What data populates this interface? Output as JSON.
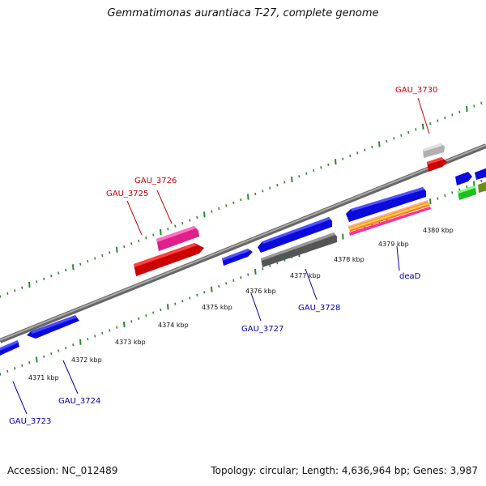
{
  "title": "Gemmatimonas aurantiaca T-27, complete genome",
  "footer": {
    "accession": "Accession: NC_012489",
    "info": "Topology: circular; Length: 4,636,964 bp; Genes: 3,987"
  },
  "colors": {
    "backbone": "#888888",
    "tick": "#2a8a2a",
    "label_upper": "#cc0000",
    "label_lower": "#0000aa"
  },
  "scale_labels": [
    "4371 kbp",
    "4372 kbp",
    "4373 kbp",
    "4374 kbp",
    "4375 kbp",
    "4376 kbp",
    "4377 kbp",
    "4378 kbp",
    "4379 kbp",
    "4380 kbp"
  ],
  "gene_labels": {
    "GAU_3723": "GAU_3723",
    "GAU_3724": "GAU_3724",
    "GAU_3725": "GAU_3725",
    "GAU_3726": "GAU_3726",
    "GAU_3727": "GAU_3727",
    "GAU_3728": "GAU_3728",
    "GAU_3730": "GAU_3730",
    "deaD": "deaD"
  },
  "genes": [
    {
      "id": "g-blue-a",
      "color": "#0a0adc",
      "strand": "reverse",
      "track": "inner"
    },
    {
      "id": "g-blue-b",
      "color": "#0a0adc",
      "strand": "forward",
      "track": "inner"
    },
    {
      "id": "g-red-3725",
      "color": "#dd0000",
      "strand": "forward",
      "track": "outer"
    },
    {
      "id": "g-pink-3726",
      "color": "#ee2e9a",
      "strand": "forward",
      "track": "outer"
    },
    {
      "id": "g-blue-3727",
      "color": "#0a0adc",
      "strand": "forward",
      "track": "inner"
    },
    {
      "id": "g-blue-3727b",
      "color": "#0a0adc",
      "strand": "reverse",
      "track": "inner"
    },
    {
      "id": "g-gray-3728",
      "color": "#666666",
      "strand": "forward",
      "track": "inner"
    },
    {
      "id": "g-blue-dead",
      "color": "#0a0adc",
      "strand": "reverse",
      "track": "inner"
    },
    {
      "id": "g-rrna",
      "color": "#ff7a20",
      "strand": "forward",
      "track": "inner"
    },
    {
      "id": "g-gray-3730",
      "color": "#c4c4c4",
      "strand": "forward",
      "track": "outer"
    },
    {
      "id": "g-red-3730",
      "color": "#dd0000",
      "strand": "forward",
      "track": "outer"
    },
    {
      "id": "g-blue-edge",
      "color": "#0a0adc",
      "strand": "forward",
      "track": "outer"
    },
    {
      "id": "g-green",
      "color": "#22cc22",
      "strand": "forward",
      "track": "outer"
    },
    {
      "id": "g-olive",
      "color": "#6b8e23",
      "strand": "forward",
      "track": "outer"
    }
  ]
}
